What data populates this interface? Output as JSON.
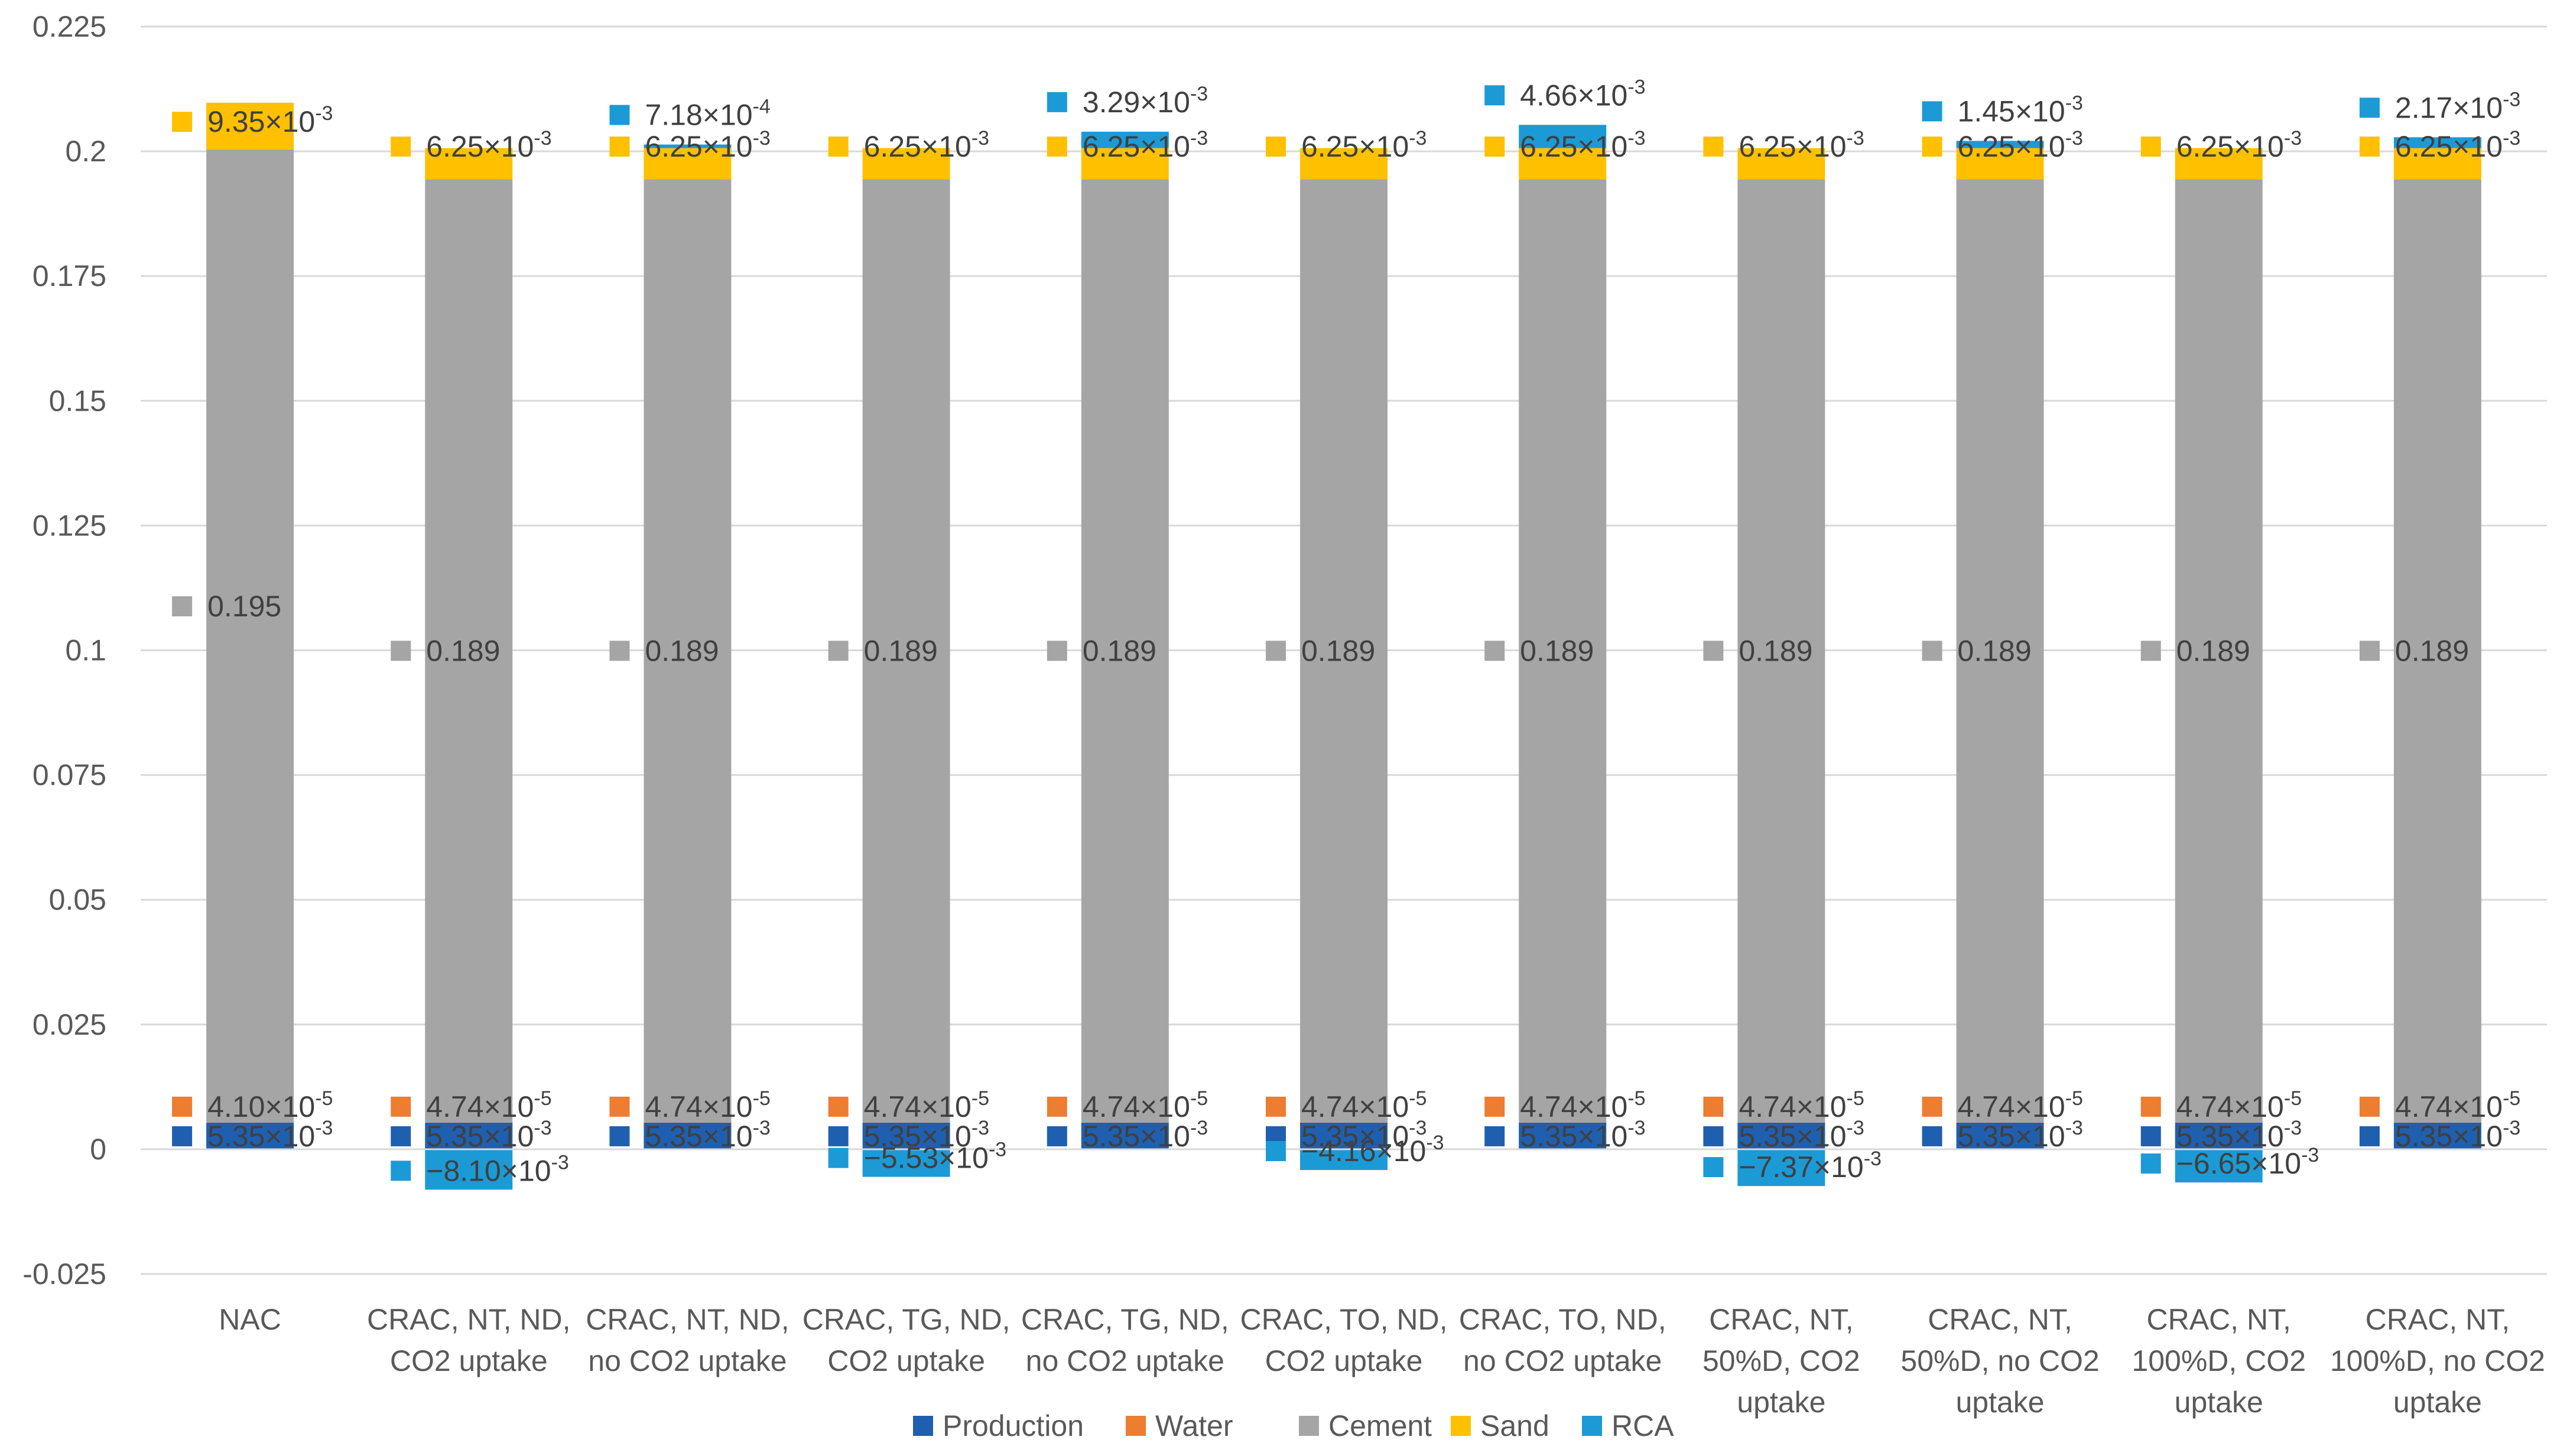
{
  "chart_data": {
    "type": "bar",
    "stacked": true,
    "title": "",
    "xlabel": "",
    "ylabel": "",
    "ylim": [
      -0.025,
      0.225
    ],
    "yticks": [
      "-0.025",
      "0",
      "0.025",
      "0.05",
      "0.075",
      "0.1",
      "0.125",
      "0.15",
      "0.175",
      "0.2",
      "0.225"
    ],
    "grid": true,
    "legend_position": "bottom",
    "categories": [
      [
        "NAC"
      ],
      [
        "CRAC, NT, ND,",
        "CO2 uptake"
      ],
      [
        "CRAC, NT, ND,",
        "no CO2 uptake"
      ],
      [
        "CRAC, TG, ND,",
        "CO2 uptake"
      ],
      [
        "CRAC, TG, ND,",
        "no CO2 uptake"
      ],
      [
        "CRAC, TO, ND,",
        "CO2 uptake"
      ],
      [
        "CRAC, TO, ND,",
        "no CO2 uptake"
      ],
      [
        "CRAC, NT,",
        "50%D, CO2",
        "uptake"
      ],
      [
        "CRAC, NT,",
        "50%D, no CO2",
        "uptake"
      ],
      [
        "CRAC, NT,",
        "100%D, CO2",
        "uptake"
      ],
      [
        "CRAC, NT,",
        "100%D, no CO2",
        "uptake"
      ]
    ],
    "series": [
      {
        "name": "Production",
        "color": "#1F5FAF",
        "values": [
          0.00535,
          0.00535,
          0.00535,
          0.00535,
          0.00535,
          0.00535,
          0.00535,
          0.00535,
          0.00535,
          0.00535,
          0.00535
        ],
        "labels": [
          {
            "m": "5.35",
            "e": "-3"
          },
          {
            "m": "5.35",
            "e": "-3"
          },
          {
            "m": "5.35",
            "e": "-3"
          },
          {
            "m": "5.35",
            "e": "-3"
          },
          {
            "m": "5.35",
            "e": "-3"
          },
          {
            "m": "5.35",
            "e": "-3"
          },
          {
            "m": "5.35",
            "e": "-3"
          },
          {
            "m": "5.35",
            "e": "-3"
          },
          {
            "m": "5.35",
            "e": "-3"
          },
          {
            "m": "5.35",
            "e": "-3"
          },
          {
            "m": "5.35",
            "e": "-3"
          }
        ]
      },
      {
        "name": "Water",
        "color": "#ED7D31",
        "values": [
          4.1e-05,
          4.74e-05,
          4.74e-05,
          4.74e-05,
          4.74e-05,
          4.74e-05,
          4.74e-05,
          4.74e-05,
          4.74e-05,
          4.74e-05,
          4.74e-05
        ],
        "labels": [
          {
            "m": "4.10",
            "e": "-5"
          },
          {
            "m": "4.74",
            "e": "-5"
          },
          {
            "m": "4.74",
            "e": "-5"
          },
          {
            "m": "4.74",
            "e": "-5"
          },
          {
            "m": "4.74",
            "e": "-5"
          },
          {
            "m": "4.74",
            "e": "-5"
          },
          {
            "m": "4.74",
            "e": "-5"
          },
          {
            "m": "4.74",
            "e": "-5"
          },
          {
            "m": "4.74",
            "e": "-5"
          },
          {
            "m": "4.74",
            "e": "-5"
          },
          {
            "m": "4.74",
            "e": "-5"
          }
        ]
      },
      {
        "name": "Cement",
        "color": "#A5A5A5",
        "values": [
          0.195,
          0.189,
          0.189,
          0.189,
          0.189,
          0.189,
          0.189,
          0.189,
          0.189,
          0.189,
          0.189
        ],
        "labels": [
          {
            "m": "0.195"
          },
          {
            "m": "0.189"
          },
          {
            "m": "0.189"
          },
          {
            "m": "0.189"
          },
          {
            "m": "0.189"
          },
          {
            "m": "0.189"
          },
          {
            "m": "0.189"
          },
          {
            "m": "0.189"
          },
          {
            "m": "0.189"
          },
          {
            "m": "0.189"
          },
          {
            "m": "0.189"
          }
        ]
      },
      {
        "name": "Sand",
        "color": "#FFC000",
        "values": [
          0.00935,
          0.00625,
          0.00625,
          0.00625,
          0.00625,
          0.00625,
          0.00625,
          0.00625,
          0.00625,
          0.00625,
          0.00625
        ],
        "labels": [
          {
            "m": "9.35",
            "e": "-3"
          },
          {
            "m": "6.25",
            "e": "-3"
          },
          {
            "m": "6.25",
            "e": "-3"
          },
          {
            "m": "6.25",
            "e": "-3"
          },
          {
            "m": "6.25",
            "e": "-3"
          },
          {
            "m": "6.25",
            "e": "-3"
          },
          {
            "m": "6.25",
            "e": "-3"
          },
          {
            "m": "6.25",
            "e": "-3"
          },
          {
            "m": "6.25",
            "e": "-3"
          },
          {
            "m": "6.25",
            "e": "-3"
          },
          {
            "m": "6.25",
            "e": "-3"
          }
        ]
      },
      {
        "name": "RCA",
        "color": "#1C9AD6",
        "values": [
          null,
          -0.0081,
          0.000718,
          -0.00553,
          0.00329,
          -0.00416,
          0.00466,
          -0.00737,
          0.00145,
          -0.00665,
          0.00217
        ],
        "labels": [
          null,
          {
            "m": "−8.10",
            "e": "-3"
          },
          {
            "m": "7.18",
            "e": "-4"
          },
          {
            "m": "−5.53",
            "e": "-3"
          },
          {
            "m": "3.29",
            "e": "-3"
          },
          {
            "m": "−4.16",
            "e": "-3"
          },
          {
            "m": "4.66",
            "e": "-3"
          },
          {
            "m": "−7.37",
            "e": "-3"
          },
          {
            "m": "1.45",
            "e": "-3"
          },
          {
            "m": "−6.65",
            "e": "-3"
          },
          {
            "m": "2.17",
            "e": "-3"
          }
        ]
      }
    ]
  }
}
